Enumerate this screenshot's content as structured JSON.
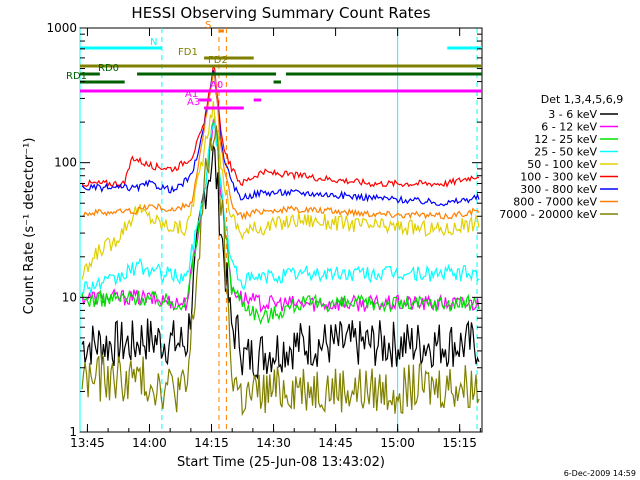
{
  "chart_data": {
    "type": "line",
    "title": "HESSI Observing Summary Count Rates",
    "xlabel": "Start Time (25-Jun-08 13:43:02)",
    "ylabel": "Count Rate (s⁻¹ detector⁻¹)",
    "x_range_min": [
      13.72,
      15.34
    ],
    "y_range": [
      1,
      1000
    ],
    "y_scale": "log",
    "x_ticks": [
      {
        "v": 13.75,
        "label": "13:45"
      },
      {
        "v": 14.0,
        "label": "14:00"
      },
      {
        "v": 14.25,
        "label": "14:15"
      },
      {
        "v": 14.5,
        "label": "14:30"
      },
      {
        "v": 14.75,
        "label": "14:45"
      },
      {
        "v": 15.0,
        "label": "15:00"
      },
      {
        "v": 15.25,
        "label": "15:15"
      }
    ],
    "y_ticks": [
      {
        "v": 1,
        "label": "1"
      },
      {
        "v": 10,
        "label": "10"
      },
      {
        "v": 100,
        "label": "100"
      },
      {
        "v": 1000,
        "label": "1000"
      }
    ],
    "legend_title": "Det 1,3,4,5,6,9",
    "legend_position": "right",
    "series": [
      {
        "name": "3 - 6 keV",
        "color": "#000000",
        "x": [
          13.73,
          13.95,
          13.95,
          14.15,
          14.22,
          14.26,
          14.29,
          14.33,
          14.37,
          14.37,
          14.6,
          14.9,
          15.2,
          15.32
        ],
        "y": [
          4.5,
          4.5,
          5.0,
          4.5,
          60,
          120,
          30,
          6,
          5,
          3.5,
          4.5,
          4.5,
          4.5,
          4.5
        ]
      },
      {
        "name": "6 - 12 keV",
        "color": "#ff00ff",
        "x": [
          13.73,
          13.95,
          14.15,
          14.22,
          14.26,
          14.29,
          14.33,
          14.37,
          14.45,
          14.6,
          14.9,
          15.2,
          15.32
        ],
        "y": [
          10,
          10,
          9,
          60,
          230,
          60,
          12,
          10,
          9,
          9,
          9,
          9,
          9
        ]
      },
      {
        "name": "12 - 25 keV",
        "color": "#00e000",
        "x": [
          13.73,
          13.95,
          14.15,
          14.22,
          14.26,
          14.29,
          14.33,
          14.37,
          14.45,
          14.6,
          14.9,
          15.2,
          15.32
        ],
        "y": [
          9.5,
          10,
          9,
          60,
          230,
          60,
          12,
          9.5,
          7,
          9,
          9,
          9,
          9
        ]
      },
      {
        "name": "25 - 50 keV",
        "color": "#00ffff",
        "x": [
          13.73,
          13.85,
          13.95,
          14.05,
          14.15,
          14.22,
          14.26,
          14.29,
          14.33,
          14.37,
          14.45,
          14.6,
          14.9,
          15.2,
          15.32
        ],
        "y": [
          12,
          13,
          17,
          15,
          14,
          60,
          230,
          60,
          18,
          13,
          14,
          15,
          15,
          15,
          15
        ]
      },
      {
        "name": "50 - 100 keV",
        "color": "#e0d000",
        "x": [
          13.73,
          13.8,
          13.85,
          13.95,
          14.05,
          14.15,
          14.22,
          14.26,
          14.29,
          14.33,
          14.37,
          14.45,
          14.6,
          14.9,
          15.2,
          15.32
        ],
        "y": [
          14,
          23,
          25,
          45,
          35,
          32,
          120,
          270,
          90,
          40,
          30,
          33,
          38,
          34,
          32,
          36
        ]
      },
      {
        "name": "100 - 300 keV",
        "color": "#ff0000",
        "x": [
          13.73,
          13.9,
          13.93,
          14.0,
          14.1,
          14.17,
          14.22,
          14.26,
          14.29,
          14.33,
          14.37,
          14.45,
          14.6,
          14.9,
          15.2,
          15.32
        ],
        "y": [
          70,
          70,
          110,
          95,
          90,
          110,
          190,
          560,
          150,
          90,
          70,
          85,
          80,
          70,
          70,
          80
        ]
      },
      {
        "name": "300 - 800 keV",
        "color": "#0000ff",
        "x": [
          13.73,
          13.95,
          14.0,
          14.1,
          14.17,
          14.22,
          14.26,
          14.29,
          14.33,
          14.37,
          14.45,
          14.6,
          14.9,
          15.2,
          15.32
        ],
        "y": [
          65,
          65,
          70,
          62,
          80,
          180,
          520,
          130,
          70,
          55,
          60,
          60,
          55,
          50,
          55
        ]
      },
      {
        "name": "800 - 7000 keV",
        "color": "#ff8000",
        "x": [
          13.73,
          13.95,
          14.0,
          14.1,
          14.17,
          14.22,
          14.26,
          14.29,
          14.33,
          14.37,
          14.45,
          14.6,
          14.9,
          15.2,
          15.32
        ],
        "y": [
          42,
          44,
          48,
          44,
          50,
          170,
          500,
          120,
          50,
          40,
          44,
          45,
          42,
          40,
          44
        ]
      },
      {
        "name": "7000 - 20000 keV",
        "color": "#808000",
        "x": [
          13.73,
          13.95,
          14.15,
          14.22,
          14.26,
          14.29,
          14.33,
          14.37,
          14.6,
          14.9,
          15.2,
          15.32
        ],
        "y": [
          2.5,
          2.5,
          2.0,
          60,
          200,
          50,
          3,
          1.8,
          2.2,
          2.0,
          2.2,
          2.2
        ]
      }
    ],
    "flag_bars": [
      {
        "label": "N",
        "color": "#00ffff",
        "segments": [
          [
            13.72,
            14.05
          ],
          [
            15.2,
            15.34
          ]
        ]
      },
      {
        "label": "S",
        "color": "#ff8000",
        "segments": [
          [
            14.28,
            14.3
          ]
        ]
      },
      {
        "label": "FD1",
        "color": "#808000",
        "segments": [
          [
            14.22,
            14.42
          ]
        ]
      },
      {
        "label": "FD2",
        "color": "#808000",
        "segments": [
          [
            13.72,
            15.34
          ]
        ]
      },
      {
        "label": "RD0",
        "color": "#006000",
        "segments": [
          [
            13.72,
            13.8
          ],
          [
            13.95,
            14.51
          ],
          [
            14.55,
            15.34
          ]
        ]
      },
      {
        "label": "RD1",
        "color": "#006000",
        "segments": [
          [
            13.72,
            13.9
          ],
          [
            14.5,
            14.53
          ]
        ]
      },
      {
        "label": "A0",
        "color": "#ff00ff",
        "segments": [
          [
            13.72,
            15.34
          ]
        ]
      },
      {
        "label": "A1",
        "color": "#ff00ff",
        "segments": [
          [
            14.2,
            14.25
          ],
          [
            14.42,
            14.45
          ]
        ]
      },
      {
        "label": "A3",
        "color": "#ff00ff",
        "segments": [
          [
            14.22,
            14.38
          ]
        ]
      }
    ],
    "vertical_lines": [
      {
        "x": 14.05,
        "color": "#00ffff",
        "dash": true
      },
      {
        "x": 15.0,
        "color": "#00ffff",
        "dash": false
      },
      {
        "x": 15.32,
        "color": "#00ffff",
        "dash": true
      },
      {
        "x": 13.72,
        "color": "#00ffff",
        "dash": false
      },
      {
        "x": 14.28,
        "color": "#ff8000",
        "dash": true
      },
      {
        "x": 14.31,
        "color": "#ff8000",
        "dash": true
      }
    ],
    "footer": "6-Dec-2009 14:59"
  }
}
